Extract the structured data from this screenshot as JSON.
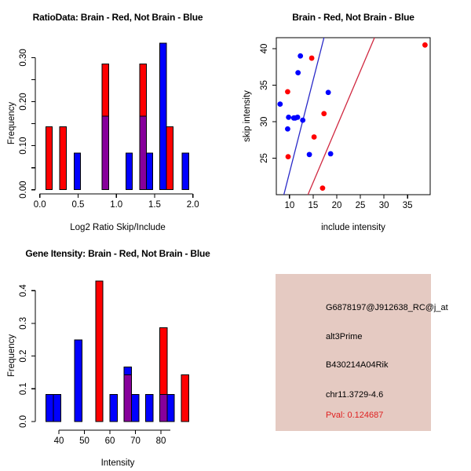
{
  "colors": {
    "red": "#FF0000",
    "blue": "#0000FF",
    "overlap_purple": "#87009B",
    "line_red": "#D02840",
    "line_blue": "#2929C8",
    "panel_pink": "#E5CAC2",
    "pval_red": "#DF2020",
    "axis": "#000000"
  },
  "chart_data": [
    {
      "id": "ratio_histogram",
      "type": "bar",
      "title": "RatioData: Brain - Red, Not Brain - Blue",
      "xlabel": "Log2 Ratio Skip/Include",
      "ylabel": "Frequency",
      "xlim": [
        0,
        2.0
      ],
      "ylim": [
        0,
        0.333
      ],
      "legend_note": "Brain - Red, Not Brain - Blue",
      "x_ticks": [
        {
          "v": 0.0,
          "label": "0.0"
        },
        {
          "v": 0.5,
          "label": "0.5"
        },
        {
          "v": 1.0,
          "label": "1.0"
        },
        {
          "v": 1.5,
          "label": "1.5"
        },
        {
          "v": 2.0,
          "label": "2.0"
        }
      ],
      "y_ticks": [
        {
          "v": 0.0,
          "label": "0.00"
        },
        {
          "v": 0.05
        },
        {
          "v": 0.1,
          "label": "0.10"
        },
        {
          "v": 0.15
        },
        {
          "v": 0.2,
          "label": "0.20"
        },
        {
          "v": 0.25
        },
        {
          "v": 0.3,
          "label": "0.30"
        }
      ],
      "bars": [
        {
          "x0": 0.078,
          "x1": 0.164,
          "red": 0.143,
          "blue": 0
        },
        {
          "x0": 0.26,
          "x1": 0.346,
          "red": 0.143,
          "blue": 0
        },
        {
          "x0": 0.447,
          "x1": 0.533,
          "red": 0,
          "blue": 0.083
        },
        {
          "x0": 0.815,
          "x1": 0.901,
          "red": 0.286,
          "blue": 0.167
        },
        {
          "x0": 1.124,
          "x1": 1.21,
          "red": 0,
          "blue": 0.083
        },
        {
          "x0": 1.305,
          "x1": 1.391,
          "red": 0.286,
          "blue": 0.167
        },
        {
          "x0": 1.391,
          "x1": 1.477,
          "red": 0,
          "blue": 0.083
        },
        {
          "x0": 1.569,
          "x1": 1.655,
          "red": 0,
          "blue": 0.333
        },
        {
          "x0": 1.655,
          "x1": 1.741,
          "red": 0.143,
          "blue": 0
        },
        {
          "x0": 1.86,
          "x1": 1.946,
          "red": 0,
          "blue": 0.083
        }
      ]
    },
    {
      "id": "intensity_scatter",
      "type": "scatter",
      "title": "Brain - Red, Not Brain - Blue",
      "xlabel": "include intensity",
      "ylabel": "skip intensity",
      "xlim": [
        7.2,
        39.8
      ],
      "ylim": [
        20,
        41.5
      ],
      "x_ticks": [
        {
          "v": 10,
          "label": "10"
        },
        {
          "v": 15,
          "label": "15"
        },
        {
          "v": 20,
          "label": "20"
        },
        {
          "v": 25,
          "label": "25"
        },
        {
          "v": 30,
          "label": "30"
        },
        {
          "v": 35,
          "label": "35"
        }
      ],
      "y_ticks": [
        {
          "v": 25,
          "label": "25"
        },
        {
          "v": 30,
          "label": "30"
        },
        {
          "v": 35,
          "label": "35"
        },
        {
          "v": 40,
          "label": "40"
        }
      ],
      "series": [
        {
          "name": "brain",
          "color": "red",
          "points": [
            [
              14.7,
              38.7
            ],
            [
              38.7,
              40.5
            ],
            [
              9.6,
              34.1
            ],
            [
              17.3,
              31.1
            ],
            [
              15.2,
              27.9
            ],
            [
              9.7,
              25.2
            ],
            [
              17.0,
              20.9
            ]
          ]
        },
        {
          "name": "not_brain",
          "color": "blue",
          "points": [
            [
              12.3,
              39.0
            ],
            [
              11.8,
              36.7
            ],
            [
              18.2,
              34.0
            ],
            [
              8.0,
              32.4
            ],
            [
              9.8,
              30.6
            ],
            [
              10.9,
              30.5
            ],
            [
              11.2,
              30.5
            ],
            [
              11.7,
              30.6
            ],
            [
              12.8,
              30.2
            ],
            [
              9.6,
              29.0
            ],
            [
              14.2,
              25.5
            ],
            [
              18.7,
              25.6
            ]
          ]
        }
      ],
      "lines": [
        {
          "color": "blue",
          "x1": 8.8,
          "y1": 20,
          "x2": 17.3,
          "y2": 41.5
        },
        {
          "color": "red",
          "x1": 13.9,
          "y1": 20,
          "x2": 28.0,
          "y2": 41.5
        }
      ]
    },
    {
      "id": "gene_intensity_histogram",
      "type": "bar",
      "title": "Gene Itensity: Brain - Red, Not Brain - Blue",
      "xlabel": "Intensity",
      "ylabel": "Frequency",
      "xlim": [
        33,
        93
      ],
      "ylim": [
        0,
        0.43
      ],
      "x_ticks": [
        {
          "v": 40,
          "label": "40"
        },
        {
          "v": 50,
          "label": "50"
        },
        {
          "v": 60,
          "label": "60"
        },
        {
          "v": 70,
          "label": "70"
        },
        {
          "v": 80,
          "label": "80"
        }
      ],
      "y_ticks": [
        {
          "v": 0.0,
          "label": "0.0"
        },
        {
          "v": 0.1,
          "label": "0.1"
        },
        {
          "v": 0.2,
          "label": "0.2"
        },
        {
          "v": 0.3,
          "label": "0.3"
        },
        {
          "v": 0.4,
          "label": "0.4"
        }
      ],
      "bars": [
        {
          "x0": 34.9,
          "x1": 37.8,
          "red": 0,
          "blue": 0.083
        },
        {
          "x0": 37.8,
          "x1": 40.7,
          "red": 0,
          "blue": 0.083
        },
        {
          "x0": 46.2,
          "x1": 49.1,
          "red": 0,
          "blue": 0.25
        },
        {
          "x0": 54.4,
          "x1": 57.3,
          "red": 0.429,
          "blue": 0
        },
        {
          "x0": 60.0,
          "x1": 62.9,
          "red": 0,
          "blue": 0.083
        },
        {
          "x0": 65.6,
          "x1": 68.5,
          "red": 0.143,
          "blue": 0.167
        },
        {
          "x0": 68.5,
          "x1": 71.4,
          "red": 0,
          "blue": 0.083
        },
        {
          "x0": 74.0,
          "x1": 76.9,
          "red": 0,
          "blue": 0.083
        },
        {
          "x0": 79.5,
          "x1": 82.4,
          "red": 0.286,
          "blue": 0.083
        },
        {
          "x0": 82.4,
          "x1": 85.3,
          "red": 0,
          "blue": 0.083
        },
        {
          "x0": 88.0,
          "x1": 90.9,
          "red": 0.143,
          "blue": 0
        }
      ]
    }
  ],
  "info_panel": {
    "lines": [
      {
        "text": "G6878197@J912638_RC@j_at",
        "color": "#000000"
      },
      {
        "text": "alt3Prime",
        "color": "#000000"
      },
      {
        "text": "B430214A04Rik",
        "color": "#000000"
      },
      {
        "text": "chr11.3729-4.6",
        "color": "#000000"
      },
      {
        "text": "Pval: 0.124687",
        "color": "#DF2020"
      }
    ]
  }
}
